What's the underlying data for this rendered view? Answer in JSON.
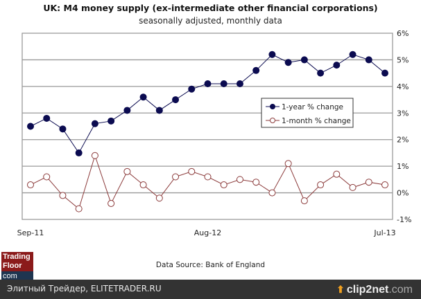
{
  "chart_data": {
    "type": "line",
    "title": "UK: M4 money supply  (ex-intermediate  other financial  corporations)",
    "subtitle": "seasonally  adjusted,  monthly data",
    "x": [
      "Sep-11",
      "Oct-11",
      "Nov-11",
      "Dec-11",
      "Jan-12",
      "Feb-12",
      "Mar-12",
      "Apr-12",
      "May-12",
      "Jun-12",
      "Jul-12",
      "Aug-12",
      "Sep-12",
      "Oct-12",
      "Nov-12",
      "Dec-12",
      "Jan-13",
      "Feb-13",
      "Mar-13",
      "Apr-13",
      "May-13",
      "Jun-13",
      "Jul-13"
    ],
    "x_tick_labels": [
      {
        "index": 0,
        "label": "Sep-11"
      },
      {
        "index": 11,
        "label": "Aug-12"
      },
      {
        "index": 22,
        "label": "Jul-13"
      }
    ],
    "y_ticks": [
      "6%",
      "5%",
      "4%",
      "3%",
      "2%",
      "1%",
      "0%",
      "-1%"
    ],
    "ylim": [
      -1,
      6
    ],
    "ylabel": "",
    "grid": true,
    "legend_position": "center-right",
    "series": [
      {
        "name": "1-year % change",
        "color": "#0b0b50",
        "marker": "filled-circle",
        "values": [
          2.5,
          2.8,
          2.4,
          1.5,
          2.6,
          2.7,
          3.1,
          3.6,
          3.1,
          3.5,
          3.9,
          4.1,
          4.1,
          4.1,
          4.6,
          5.2,
          4.9,
          5.0,
          4.5,
          4.8,
          5.2,
          5.0,
          4.5
        ]
      },
      {
        "name": "1-month % change",
        "color": "#8b3a3a",
        "marker": "open-circle",
        "values": [
          0.3,
          0.6,
          -0.1,
          -0.6,
          1.4,
          -0.4,
          0.8,
          0.3,
          -0.2,
          0.6,
          0.8,
          0.6,
          0.3,
          0.5,
          0.4,
          0.0,
          1.1,
          -0.3,
          0.3,
          0.7,
          0.2,
          0.4,
          0.3
        ]
      }
    ]
  },
  "source": "Data Source: Bank of England",
  "logo": {
    "line1": "Trading",
    "line2": "Floor",
    "line3": "com"
  },
  "footer": {
    "left": "Элитный Трейдер, ELITETRADER.RU",
    "brand": "clip2net",
    ".com": ".com"
  }
}
